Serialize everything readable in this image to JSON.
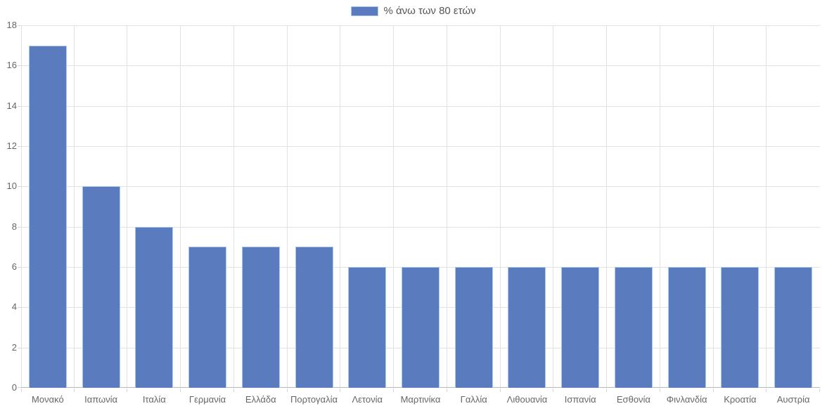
{
  "chart_data": {
    "type": "bar",
    "title": "",
    "legend": {
      "label": "% άνω των 80 ετών",
      "position": "top-center"
    },
    "categories": [
      "Μονακό",
      "Ιαπωνία",
      "Ιταλία",
      "Γερμανία",
      "Ελλάδα",
      "Πορτογαλία",
      "Λετονία",
      "Μαρτινίκα",
      "Γαλλία",
      "Λιθουανία",
      "Ισπανία",
      "Εσθονία",
      "Φινλανδία",
      "Κροατία",
      "Αυστρία"
    ],
    "values": [
      17,
      10,
      8,
      7,
      7,
      7,
      6,
      6,
      6,
      6,
      6,
      6,
      6,
      6,
      6
    ],
    "xlabel": "",
    "ylabel": "",
    "ylim": [
      0,
      18
    ],
    "ytick_step": 2,
    "grid": true,
    "colors": {
      "bar_fill": "#5a7cbe",
      "bar_border": "#a9cbe9",
      "gridline": "#e2e2e2",
      "tick": "#d6d6d6",
      "axis_line": "#b8b8b8",
      "tick_label": "#666666",
      "legend_text": "#555555"
    }
  }
}
